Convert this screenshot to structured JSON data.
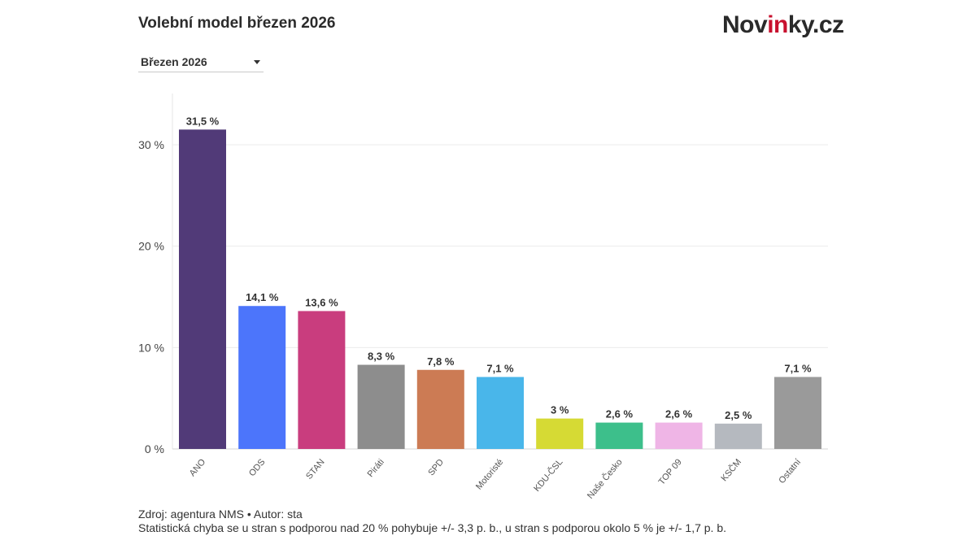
{
  "header": {
    "title": "Volební model březen 2026",
    "logo_prefix": "Nov",
    "logo_accent": "in",
    "logo_suffix": "ky.cz"
  },
  "selector": {
    "selected": "Březen 2026"
  },
  "chart_data": {
    "type": "bar",
    "title": "Volební model březen 2026",
    "xlabel": "",
    "ylabel": "",
    "ylim": [
      0,
      35
    ],
    "yticks": [
      0,
      10,
      20,
      30
    ],
    "ytick_labels": [
      "0 %",
      "10 %",
      "20 %",
      "30 %"
    ],
    "grid": true,
    "categories": [
      "ANO",
      "ODS",
      "STAN",
      "Piráti",
      "SPD",
      "Motoristé",
      "KDU-ČSL",
      "Naše Česko",
      "TOP 09",
      "KSČM",
      "Ostatní"
    ],
    "values": [
      31.5,
      14.1,
      13.6,
      8.3,
      7.8,
      7.1,
      3,
      2.6,
      2.6,
      2.5,
      7.1
    ],
    "value_labels": [
      "31,5 %",
      "14,1 %",
      "13,6 %",
      "8,3 %",
      "7,8 %",
      "7,1 %",
      "3 %",
      "2,6 %",
      "2,6 %",
      "2,5 %",
      "7,1 %"
    ],
    "colors": [
      "#513a78",
      "#4c75fb",
      "#c93d7e",
      "#8d8d8d",
      "#cc7b54",
      "#49b6ea",
      "#d6da34",
      "#3dbf8b",
      "#efb5e6",
      "#b5b9bf",
      "#9a9a9a"
    ]
  },
  "footer": {
    "source_line": "Zdroj: agentura NMS • Autor: sta",
    "error_note": "Statistická chyba se u stran s podporou nad 20 % pohybuje +/- 3,3 p. b., u stran s podporou okolo 5 % je +/- 1,7 p. b."
  }
}
